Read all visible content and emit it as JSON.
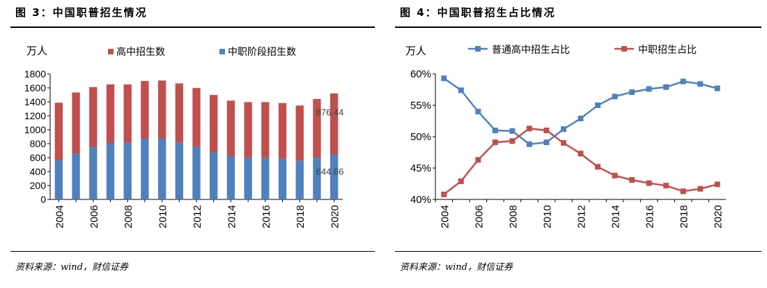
{
  "figures": [
    {
      "title": "图 3：中国职普招生情况",
      "source": "资料来源：wind，财信证券",
      "chart_data": {
        "type": "bar",
        "stacked": true,
        "unit": "万人",
        "categories": [
          "2004",
          "2005",
          "2006",
          "2007",
          "2008",
          "2009",
          "2010",
          "2011",
          "2012",
          "2013",
          "2014",
          "2015",
          "2016",
          "2017",
          "2018",
          "2019",
          "2020"
        ],
        "x_tick_labels": [
          "2004",
          "2006",
          "2008",
          "2010",
          "2012",
          "2014",
          "2016",
          "2018",
          "2020"
        ],
        "y_ticks": [
          0,
          200,
          400,
          600,
          800,
          1000,
          1200,
          1400,
          1600,
          1800
        ],
        "ylim": [
          0,
          1800
        ],
        "legend_position": "top",
        "series": [
          {
            "name": "中职阶段招生数",
            "color": "#4f81bd",
            "values": [
              566,
              656,
              748,
              810,
              812,
              869,
              870,
              813,
              754,
              675,
              620,
              601,
              593,
              582,
              557,
              600,
              644.66
            ]
          },
          {
            "name": "高中招生数",
            "color": "#c0504d",
            "values": [
              821,
              878,
              863,
              840,
              837,
              830,
              836,
              851,
              844,
              823,
              797,
              795,
              803,
              800,
              790,
              840,
              876.44
            ]
          }
        ],
        "annotations": [
          "876.44",
          "644.66"
        ]
      }
    },
    {
      "title": "图 4：中国职普招生占比情况",
      "source": "资料来源：wind，财信证券",
      "chart_data": {
        "type": "line",
        "unit": "万人",
        "x": [
          "2004",
          "2005",
          "2006",
          "2007",
          "2008",
          "2009",
          "2010",
          "2011",
          "2012",
          "2013",
          "2014",
          "2015",
          "2016",
          "2017",
          "2018",
          "2019",
          "2020"
        ],
        "x_tick_labels": [
          "2004",
          "2006",
          "2008",
          "2010",
          "2012",
          "2014",
          "2016",
          "2018",
          "2020"
        ],
        "y_ticks": [
          "40%",
          "45%",
          "50%",
          "55%",
          "60%"
        ],
        "ylim": [
          40,
          60
        ],
        "legend_position": "top",
        "series": [
          {
            "name": "普通高中招生占比",
            "color": "#4f81bd",
            "values": [
              59.3,
              57.4,
              54.0,
              51.0,
              50.9,
              48.8,
              49.1,
              51.2,
              52.9,
              55.0,
              56.4,
              57.1,
              57.6,
              57.9,
              58.8,
              58.4,
              57.7
            ]
          },
          {
            "name": "中职招生占比",
            "color": "#c0504d",
            "values": [
              40.8,
              42.9,
              46.3,
              49.1,
              49.3,
              51.3,
              51.0,
              49.0,
              47.3,
              45.2,
              43.8,
              43.1,
              42.6,
              42.2,
              41.3,
              41.7,
              42.4
            ]
          }
        ]
      }
    }
  ]
}
